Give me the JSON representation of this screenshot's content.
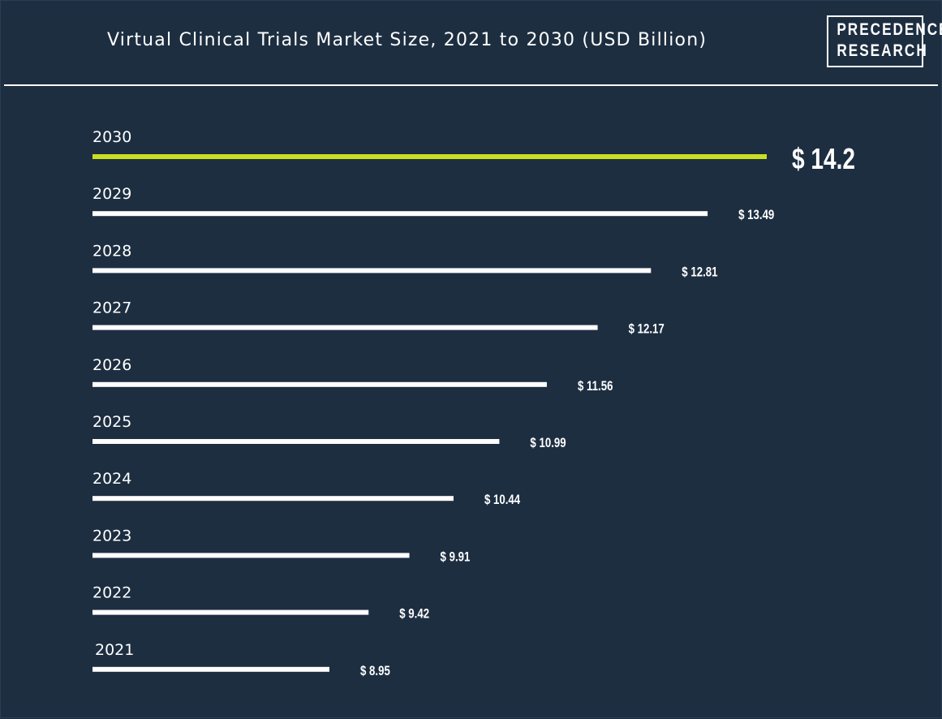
{
  "header": {
    "title": "Virtual Clinical Trials Market Size, 2021 to 2030 (USD Billion)",
    "logo_line1": "PRECEDENCE",
    "logo_line2": "RESEARCH"
  },
  "colors": {
    "background": "#1d2e41",
    "bar": "#ffffff",
    "highlight_bar": "#c8e021",
    "text": "#ffffff"
  },
  "chart_data": {
    "type": "bar",
    "orientation": "horizontal",
    "title": "Virtual Clinical Trials Market Size, 2021 to 2030 (USD Billion)",
    "categories": [
      "2030",
      "2029",
      "2028",
      "2027",
      "2026",
      "2025",
      "2024",
      "2023",
      "2022",
      "2021"
    ],
    "values": [
      14.2,
      13.49,
      12.81,
      12.17,
      11.56,
      10.99,
      10.44,
      9.91,
      9.42,
      8.95
    ],
    "value_labels": [
      "$ 14.2",
      "$ 13.49",
      "$ 12.81",
      "$ 12.17",
      "$ 11.56",
      "$ 10.99",
      "$ 10.44",
      "$ 9.91",
      "$ 9.42",
      "$ 8.95"
    ],
    "highlight_category": "2030",
    "xlabel": "",
    "ylabel": "",
    "grid": false,
    "legend": "none"
  }
}
